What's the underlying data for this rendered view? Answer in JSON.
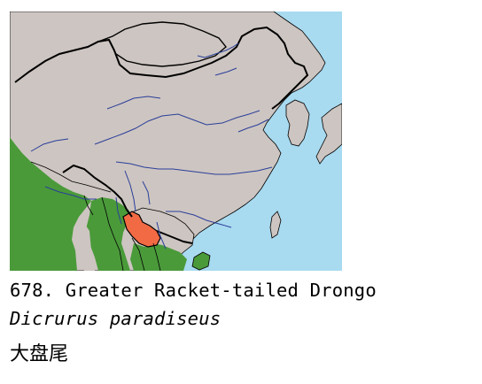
{
  "map": {
    "colors": {
      "sea": "#a8daf0",
      "land": "#cdc5c1",
      "resident_range": "#4a9a3a",
      "breeding_range": "#f26a44",
      "rivers": "#2a3f9a",
      "borders": "#000000"
    },
    "legend_semantics": {
      "green": "range area (South Asia, Indochina, Hainan)",
      "orange": "range area (southern Yunnan)"
    }
  },
  "caption": {
    "number_and_common_name": "678. Greater Racket-tailed Drongo",
    "scientific_name": "Dicrurus paradiseus",
    "chinese_name": "大盘尾"
  }
}
